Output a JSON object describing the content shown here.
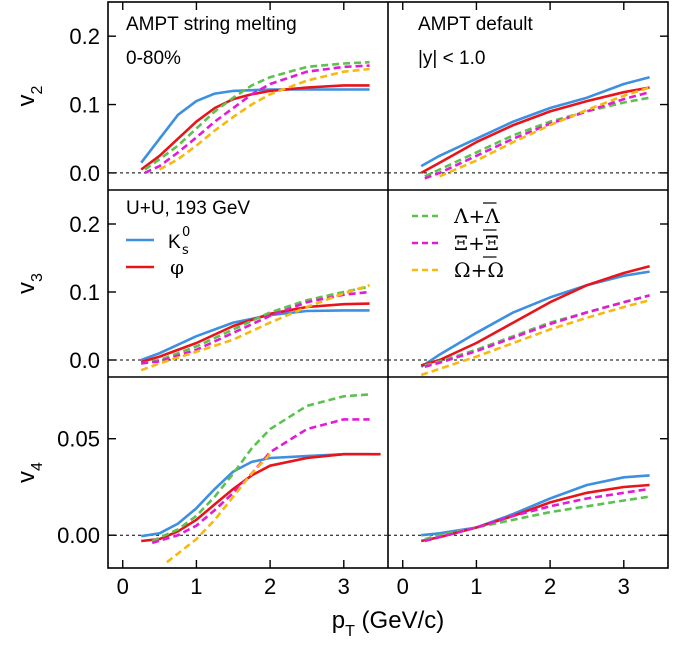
{
  "chart_data": {
    "type": "line",
    "xlabel": {
      "main": "p",
      "sub": "T",
      "rest": " (GeV/c)"
    },
    "x_ticks": [
      "0",
      "1",
      "2",
      "3"
    ],
    "xlim": [
      -0.2,
      3.6
    ],
    "row_labels": [
      {
        "main": "v",
        "sub": "2"
      },
      {
        "main": "v",
        "sub": "3"
      },
      {
        "main": "v",
        "sub": "4"
      }
    ],
    "rows": [
      {
        "ylim": [
          -0.025,
          0.25
        ],
        "ticks": [
          0.0,
          0.1,
          0.2
        ],
        "tick_labels": [
          "0.0",
          "0.1",
          "0.2"
        ]
      },
      {
        "ylim": [
          -0.025,
          0.25
        ],
        "ticks": [
          0.0,
          0.1,
          0.2
        ],
        "tick_labels": [
          "0.0",
          "0.1",
          "0.2"
        ]
      },
      {
        "ylim": [
          -0.017,
          0.082
        ],
        "ticks": [
          0.0,
          0.05
        ],
        "tick_labels": [
          "0.00",
          "0.05"
        ]
      }
    ],
    "annotations": [
      {
        "panel": "0-0",
        "lines": [
          "AMPT string melting",
          "0-80%"
        ]
      },
      {
        "panel": "0-1",
        "lines": [
          "AMPT default",
          "|y| < 1.0"
        ]
      },
      {
        "panel": "1-0",
        "lines": [
          "U+U, 193 GeV"
        ]
      }
    ],
    "legend": [
      {
        "panel": "1-0",
        "main": "K",
        "sup": "0",
        "sub": "s",
        "color": "#3d8fe0",
        "dash": false
      },
      {
        "panel": "1-0",
        "main": "φ",
        "color": "#e8141a",
        "dash": false
      },
      {
        "panel": "1-1",
        "main": "Λ+Λ",
        "bar": "Λ",
        "color": "#5cc24f",
        "dash": true
      },
      {
        "panel": "1-1",
        "main": "Ξ+Ξ",
        "bar": "Ξ",
        "color": "#e31ad6",
        "dash": true
      },
      {
        "panel": "1-1",
        "main": "Ω+Ω",
        "bar": "Ω",
        "color": "#f7b90f",
        "dash": true
      }
    ],
    "series": [
      {
        "name": "K",
        "color": "#3d8fe0",
        "dash": false,
        "panels": [
          {
            "x": [
              0.25,
              0.5,
              0.75,
              1.0,
              1.25,
              1.5,
              2.0,
              2.5,
              3.0,
              3.35
            ],
            "y": [
              0.015,
              0.05,
              0.085,
              0.105,
              0.116,
              0.12,
              0.122,
              0.122,
              0.122,
              0.122
            ]
          },
          {
            "x": [
              0.25,
              0.5,
              1.0,
              1.5,
              2.0,
              2.5,
              3.0,
              3.35
            ],
            "y": [
              0.01,
              0.025,
              0.05,
              0.075,
              0.095,
              0.11,
              0.13,
              0.14
            ]
          },
          {
            "x": [
              0.25,
              0.5,
              1.0,
              1.5,
              2.0,
              2.5,
              3.0,
              3.35
            ],
            "y": [
              0.0,
              0.01,
              0.035,
              0.055,
              0.066,
              0.072,
              0.073,
              0.073
            ]
          },
          {
            "x": [
              0.25,
              0.5,
              1.0,
              1.5,
              2.0,
              2.5,
              3.0,
              3.35
            ],
            "y": [
              -0.01,
              0.008,
              0.04,
              0.07,
              0.092,
              0.11,
              0.124,
              0.13
            ]
          },
          {
            "x": [
              0.25,
              0.5,
              0.75,
              1.0,
              1.25,
              1.5,
              1.75,
              2.0,
              2.5,
              3.0,
              3.35
            ],
            "y": [
              -0.0005,
              0.001,
              0.006,
              0.014,
              0.024,
              0.033,
              0.038,
              0.04,
              0.041,
              0.042,
              0.042
            ]
          },
          {
            "x": [
              0.25,
              0.5,
              1.0,
              1.5,
              2.0,
              2.5,
              3.0,
              3.35
            ],
            "y": [
              0.0,
              0.001,
              0.004,
              0.011,
              0.019,
              0.026,
              0.03,
              0.031
            ]
          }
        ]
      },
      {
        "name": "φ",
        "color": "#e8141a",
        "dash": false,
        "panels": [
          {
            "x": [
              0.25,
              0.5,
              0.75,
              1.0,
              1.25,
              1.5,
              1.75,
              2.0,
              2.5,
              3.0,
              3.35
            ],
            "y": [
              0.005,
              0.025,
              0.05,
              0.075,
              0.095,
              0.108,
              0.115,
              0.12,
              0.125,
              0.128,
              0.128
            ]
          },
          {
            "x": [
              0.25,
              0.5,
              1.0,
              1.5,
              2.0,
              2.5,
              3.0,
              3.35
            ],
            "y": [
              0.0,
              0.015,
              0.045,
              0.07,
              0.09,
              0.105,
              0.118,
              0.125
            ]
          },
          {
            "x": [
              0.25,
              0.5,
              1.0,
              1.5,
              2.0,
              2.5,
              3.0,
              3.35
            ],
            "y": [
              -0.003,
              0.005,
              0.025,
              0.05,
              0.068,
              0.078,
              0.082,
              0.083
            ]
          },
          {
            "x": [
              0.25,
              0.5,
              1.0,
              1.5,
              2.0,
              2.5,
              3.0,
              3.35
            ],
            "y": [
              -0.008,
              0.0,
              0.025,
              0.055,
              0.085,
              0.11,
              0.128,
              0.138
            ]
          },
          {
            "x": [
              0.25,
              0.5,
              0.75,
              1.0,
              1.25,
              1.5,
              1.75,
              2.0,
              2.5,
              3.0,
              3.5
            ],
            "y": [
              -0.003,
              -0.002,
              0.002,
              0.008,
              0.016,
              0.024,
              0.031,
              0.036,
              0.04,
              0.042,
              0.042
            ]
          },
          {
            "x": [
              0.25,
              0.5,
              1.0,
              1.5,
              2.0,
              2.5,
              3.0,
              3.35
            ],
            "y": [
              -0.003,
              -0.001,
              0.004,
              0.01,
              0.017,
              0.022,
              0.025,
              0.026
            ]
          }
        ]
      },
      {
        "name": "Λ+Λ",
        "color": "#5cc24f",
        "dash": true,
        "panels": [
          {
            "x": [
              0.3,
              0.5,
              0.75,
              1.0,
              1.25,
              1.5,
              1.75,
              2.0,
              2.5,
              3.0,
              3.35
            ],
            "y": [
              0.005,
              0.02,
              0.04,
              0.065,
              0.09,
              0.11,
              0.128,
              0.14,
              0.155,
              0.16,
              0.162
            ]
          },
          {
            "x": [
              0.3,
              0.5,
              1.0,
              1.5,
              2.0,
              2.5,
              3.0,
              3.35
            ],
            "y": [
              -0.005,
              0.005,
              0.03,
              0.055,
              0.075,
              0.09,
              0.103,
              0.11
            ]
          },
          {
            "x": [
              0.25,
              0.5,
              1.0,
              1.5,
              2.0,
              2.5,
              3.0,
              3.35
            ],
            "y": [
              -0.005,
              0.0,
              0.02,
              0.045,
              0.07,
              0.088,
              0.1,
              0.108
            ]
          },
          {
            "x": [
              0.3,
              0.5,
              1.0,
              1.5,
              2.0,
              2.5,
              3.0,
              3.35
            ],
            "y": [
              -0.008,
              -0.002,
              0.015,
              0.035,
              0.055,
              0.07,
              0.085,
              0.095
            ]
          },
          {
            "x": [
              0.4,
              0.75,
              1.0,
              1.25,
              1.5,
              1.75,
              2.0,
              2.5,
              3.0,
              3.35
            ],
            "y": [
              -0.003,
              0.003,
              0.01,
              0.02,
              0.032,
              0.045,
              0.055,
              0.067,
              0.072,
              0.073
            ]
          },
          {
            "x": [
              0.3,
              0.5,
              1.0,
              1.5,
              2.0,
              2.5,
              3.0,
              3.35
            ],
            "y": [
              -0.002,
              0.0,
              0.004,
              0.008,
              0.012,
              0.015,
              0.018,
              0.02
            ]
          }
        ]
      },
      {
        "name": "Ξ+Ξ",
        "color": "#e31ad6",
        "dash": true,
        "panels": [
          {
            "x": [
              0.3,
              0.5,
              0.75,
              1.0,
              1.25,
              1.5,
              1.75,
              2.0,
              2.5,
              3.0,
              3.35
            ],
            "y": [
              0.0,
              0.01,
              0.03,
              0.052,
              0.075,
              0.095,
              0.115,
              0.13,
              0.148,
              0.155,
              0.157
            ]
          },
          {
            "x": [
              0.3,
              0.5,
              1.0,
              1.5,
              2.0,
              2.5,
              3.0,
              3.35
            ],
            "y": [
              -0.008,
              0.0,
              0.025,
              0.05,
              0.072,
              0.09,
              0.108,
              0.118
            ]
          },
          {
            "x": [
              0.25,
              0.5,
              1.0,
              1.5,
              2.0,
              2.5,
              3.0,
              3.35
            ],
            "y": [
              -0.005,
              -0.002,
              0.015,
              0.04,
              0.065,
              0.085,
              0.096,
              0.1
            ]
          },
          {
            "x": [
              0.3,
              0.5,
              1.0,
              1.5,
              2.0,
              2.5,
              3.0,
              3.35
            ],
            "y": [
              -0.01,
              -0.004,
              0.013,
              0.033,
              0.053,
              0.07,
              0.085,
              0.095
            ]
          },
          {
            "x": [
              0.4,
              0.75,
              1.0,
              1.25,
              1.5,
              1.75,
              2.0,
              2.5,
              3.0,
              3.35
            ],
            "y": [
              -0.004,
              0.0,
              0.005,
              0.013,
              0.022,
              0.032,
              0.043,
              0.055,
              0.06,
              0.06
            ]
          },
          {
            "x": [
              0.3,
              0.5,
              1.0,
              1.5,
              2.0,
              2.5,
              3.0,
              3.35
            ],
            "y": [
              -0.003,
              -0.001,
              0.004,
              0.01,
              0.015,
              0.019,
              0.022,
              0.024
            ]
          }
        ]
      },
      {
        "name": "Ω+Ω",
        "color": "#f7b90f",
        "dash": true,
        "panels": [
          {
            "x": [
              0.5,
              0.75,
              1.0,
              1.25,
              1.5,
              1.75,
              2.0,
              2.5,
              3.0,
              3.35
            ],
            "y": [
              0.005,
              0.02,
              0.04,
              0.062,
              0.082,
              0.1,
              0.115,
              0.135,
              0.148,
              0.152
            ]
          },
          {
            "x": [
              0.5,
              1.0,
              1.5,
              2.0,
              2.5,
              3.0,
              3.35
            ],
            "y": [
              -0.005,
              0.018,
              0.045,
              0.07,
              0.092,
              0.113,
              0.125
            ]
          },
          {
            "x": [
              0.25,
              0.5,
              1.0,
              1.5,
              2.0,
              2.5,
              3.0,
              3.35
            ],
            "y": [
              -0.015,
              -0.005,
              0.012,
              0.03,
              0.055,
              0.078,
              0.098,
              0.11
            ]
          },
          {
            "x": [
              0.25,
              0.5,
              1.0,
              1.5,
              2.0,
              2.5,
              3.0,
              3.35
            ],
            "y": [
              -0.022,
              -0.013,
              0.005,
              0.025,
              0.045,
              0.062,
              0.078,
              0.088
            ]
          },
          {
            "x": [
              0.6,
              0.8,
              1.0,
              1.25,
              1.5,
              1.75,
              2.0
            ],
            "y": [
              -0.014,
              -0.008,
              -0.002,
              0.008,
              0.02,
              0.032,
              0.042
            ]
          }
        ]
      }
    ]
  }
}
